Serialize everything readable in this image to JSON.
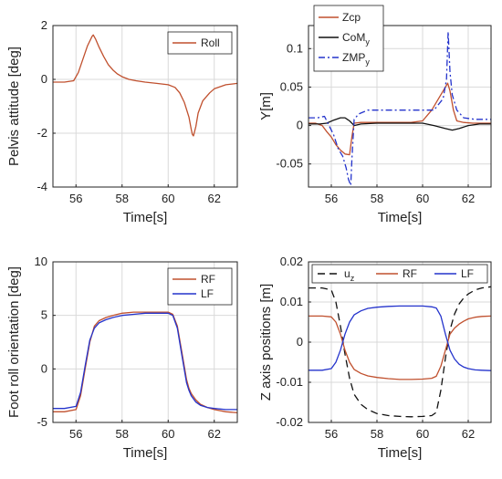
{
  "chart_data": [
    {
      "type": "line",
      "xlabel": "Time[s]",
      "ylabel": "Pelvis attitude [deg]",
      "xlim": [
        55,
        63
      ],
      "ylim": [
        -4,
        2
      ],
      "xticks": [
        56,
        58,
        60,
        62
      ],
      "yticks": [
        -4,
        -2,
        0,
        2
      ],
      "grid": true,
      "legend": "top-right",
      "series": [
        {
          "name": "Roll",
          "color": "#c0502e",
          "dash": "solid",
          "x": [
            55,
            55.5,
            55.9,
            56.1,
            56.3,
            56.5,
            56.7,
            56.75,
            56.85,
            57.0,
            57.2,
            57.4,
            57.6,
            57.8,
            58.0,
            58.3,
            58.6,
            59.0,
            59.5,
            60.0,
            60.3,
            60.5,
            60.7,
            60.9,
            61.0,
            61.05,
            61.1,
            61.2,
            61.3,
            61.5,
            61.8,
            62.0,
            62.5,
            63
          ],
          "y": [
            -0.1,
            -0.1,
            -0.05,
            0.25,
            0.75,
            1.25,
            1.6,
            1.65,
            1.5,
            1.2,
            0.85,
            0.55,
            0.35,
            0.2,
            0.1,
            0.0,
            -0.05,
            -0.1,
            -0.15,
            -0.2,
            -0.3,
            -0.5,
            -0.85,
            -1.4,
            -1.85,
            -2.05,
            -2.1,
            -1.75,
            -1.25,
            -0.8,
            -0.5,
            -0.35,
            -0.2,
            -0.15
          ]
        }
      ]
    },
    {
      "type": "line",
      "xlabel": "Time[s]",
      "ylabel": "Y[m]",
      "xlim": [
        55,
        63
      ],
      "ylim": [
        -0.08,
        0.13
      ],
      "xticks": [
        56,
        58,
        60,
        62
      ],
      "yticks": [
        -0.05,
        0,
        0.05,
        0.1
      ],
      "ytick_labels": [
        "-0.05",
        "0",
        "0.05",
        "0.1"
      ],
      "grid": true,
      "legend": "top-left",
      "series": [
        {
          "name": "Zcp",
          "color": "#c0502e",
          "dash": "solid",
          "x": [
            55,
            55.3,
            55.6,
            55.8,
            56.0,
            56.2,
            56.4,
            56.6,
            56.8,
            56.9,
            57.0,
            57.3,
            57.8,
            58.5,
            59.5,
            60.0,
            60.4,
            60.7,
            61.0,
            61.1,
            61.2,
            61.35,
            61.5,
            61.8,
            62.2,
            63
          ],
          "y": [
            0.003,
            0.003,
            0.0,
            -0.008,
            -0.015,
            -0.025,
            -0.032,
            -0.037,
            -0.038,
            -0.015,
            0.003,
            0.004,
            0.004,
            0.004,
            0.004,
            0.006,
            0.02,
            0.035,
            0.05,
            0.055,
            0.045,
            0.02,
            0.006,
            0.004,
            0.003,
            0.003
          ]
        },
        {
          "name": "CoM",
          "name_subscript": "y",
          "color": "#111111",
          "dash": "solid",
          "x": [
            55,
            55.5,
            55.8,
            56.1,
            56.4,
            56.6,
            56.8,
            57.0,
            57.3,
            58.0,
            59.0,
            60.0,
            60.5,
            61.0,
            61.3,
            61.6,
            62.0,
            62.5,
            63
          ],
          "y": [
            0.002,
            0.002,
            0.003,
            0.007,
            0.01,
            0.01,
            0.006,
            0.0,
            0.002,
            0.003,
            0.003,
            0.003,
            0.0,
            -0.004,
            -0.006,
            -0.004,
            0.0,
            0.002,
            0.002
          ]
        },
        {
          "name": "ZMP",
          "name_subscript": "y",
          "color": "#2433cc",
          "dash": "dashdot",
          "x": [
            55,
            55.4,
            55.7,
            55.9,
            56.1,
            56.3,
            56.5,
            56.65,
            56.75,
            56.85,
            56.9,
            57.0,
            57.2,
            57.6,
            58.0,
            59.0,
            60.0,
            60.5,
            60.9,
            61.05,
            61.12,
            61.2,
            61.3,
            61.5,
            61.8,
            62.3,
            63
          ],
          "y": [
            0.01,
            0.01,
            0.012,
            0.0,
            -0.012,
            -0.03,
            -0.04,
            -0.055,
            -0.07,
            -0.078,
            -0.045,
            0.008,
            0.015,
            0.02,
            0.02,
            0.02,
            0.02,
            0.02,
            0.035,
            0.06,
            0.122,
            0.07,
            0.04,
            0.02,
            0.01,
            0.008,
            0.008
          ]
        }
      ]
    },
    {
      "type": "line",
      "xlabel": "Time[s]",
      "ylabel": "Foot roll orientation [deg]",
      "xlim": [
        55,
        63
      ],
      "ylim": [
        -5,
        10
      ],
      "xticks": [
        56,
        58,
        60,
        62
      ],
      "yticks": [
        -5,
        0,
        5,
        10
      ],
      "grid": true,
      "legend": "top-right",
      "series": [
        {
          "name": "RF",
          "color": "#c0502e",
          "dash": "solid",
          "x": [
            55,
            55.5,
            56.0,
            56.2,
            56.4,
            56.6,
            56.8,
            57.0,
            57.3,
            57.6,
            58.0,
            58.5,
            59.0,
            59.5,
            60.0,
            60.2,
            60.4,
            60.6,
            60.8,
            60.9,
            61.0,
            61.2,
            61.4,
            61.7,
            62.0,
            62.5,
            63
          ],
          "y": [
            -4.0,
            -4.0,
            -3.8,
            -2.5,
            0.0,
            2.5,
            4.0,
            4.5,
            4.8,
            5.0,
            5.2,
            5.3,
            5.3,
            5.3,
            5.3,
            5.1,
            4.0,
            1.5,
            -1.0,
            -1.8,
            -2.3,
            -2.9,
            -3.3,
            -3.6,
            -3.8,
            -4.0,
            -4.1
          ]
        },
        {
          "name": "LF",
          "color": "#2433cc",
          "dash": "solid",
          "x": [
            55,
            55.5,
            56.0,
            56.2,
            56.4,
            56.6,
            56.8,
            57.0,
            57.3,
            57.6,
            58.0,
            58.5,
            59.0,
            59.5,
            60.0,
            60.2,
            60.4,
            60.6,
            60.8,
            60.9,
            61.0,
            61.2,
            61.4,
            61.7,
            62.0,
            62.5,
            63
          ],
          "y": [
            -3.7,
            -3.7,
            -3.5,
            -2.2,
            0.3,
            2.7,
            3.8,
            4.3,
            4.6,
            4.8,
            5.0,
            5.1,
            5.2,
            5.2,
            5.2,
            5.0,
            3.8,
            1.2,
            -1.3,
            -2.0,
            -2.5,
            -3.1,
            -3.4,
            -3.6,
            -3.7,
            -3.8,
            -3.8
          ]
        }
      ]
    },
    {
      "type": "line",
      "xlabel": "Time[s]",
      "ylabel": "Z axis positions [m]",
      "xlim": [
        55,
        63
      ],
      "ylim": [
        -0.02,
        0.02
      ],
      "xticks": [
        56,
        58,
        60,
        62
      ],
      "yticks": [
        -0.02,
        -0.01,
        0,
        0.01,
        0.02
      ],
      "ytick_labels": [
        "-0.02",
        "-0.01",
        "0",
        "0.01",
        "0.02"
      ],
      "grid": true,
      "legend": "top",
      "series": [
        {
          "name": "u",
          "name_subscript": "z",
          "color": "#111111",
          "dash": "dashed",
          "x": [
            55,
            55.6,
            56.0,
            56.2,
            56.4,
            56.6,
            56.8,
            57.0,
            57.3,
            57.6,
            58.0,
            58.5,
            59.0,
            59.5,
            60.0,
            60.4,
            60.6,
            60.8,
            61.0,
            61.2,
            61.4,
            61.6,
            61.8,
            62.0,
            62.3,
            62.6,
            63
          ],
          "y": [
            0.0135,
            0.0135,
            0.013,
            0.01,
            0.004,
            -0.003,
            -0.009,
            -0.013,
            -0.0155,
            -0.0168,
            -0.0178,
            -0.0183,
            -0.0185,
            -0.0186,
            -0.0185,
            -0.0183,
            -0.0175,
            -0.012,
            -0.004,
            0.003,
            0.007,
            0.0095,
            0.011,
            0.012,
            0.013,
            0.0135,
            0.0138
          ]
        },
        {
          "name": "RF",
          "color": "#c0502e",
          "dash": "solid",
          "x": [
            55,
            55.6,
            56.0,
            56.2,
            56.4,
            56.6,
            56.8,
            57.0,
            57.3,
            57.6,
            58.0,
            58.5,
            59.0,
            59.5,
            60.0,
            60.4,
            60.6,
            60.8,
            61.0,
            61.2,
            61.4,
            61.6,
            61.8,
            62.0,
            62.3,
            62.6,
            63
          ],
          "y": [
            0.0065,
            0.0065,
            0.0063,
            0.005,
            0.002,
            -0.002,
            -0.005,
            -0.0068,
            -0.0078,
            -0.0084,
            -0.0088,
            -0.0091,
            -0.0093,
            -0.0093,
            -0.0092,
            -0.009,
            -0.0085,
            -0.006,
            -0.002,
            0.002,
            0.0035,
            0.0045,
            0.0052,
            0.0058,
            0.0062,
            0.0064,
            0.0065
          ]
        },
        {
          "name": "LF",
          "color": "#2433cc",
          "dash": "solid",
          "x": [
            55,
            55.6,
            56.0,
            56.2,
            56.4,
            56.6,
            56.8,
            57.0,
            57.3,
            57.6,
            58.0,
            58.5,
            59.0,
            59.5,
            60.0,
            60.4,
            60.6,
            60.8,
            61.0,
            61.2,
            61.4,
            61.6,
            61.8,
            62.0,
            62.3,
            62.6,
            63
          ],
          "y": [
            -0.007,
            -0.007,
            -0.0066,
            -0.005,
            -0.002,
            0.002,
            0.005,
            0.0068,
            0.0078,
            0.0084,
            0.0087,
            0.0089,
            0.009,
            0.009,
            0.009,
            0.0088,
            0.0085,
            0.0065,
            0.002,
            -0.002,
            -0.0042,
            -0.0055,
            -0.0062,
            -0.0066,
            -0.0069,
            -0.007,
            -0.0071
          ]
        }
      ]
    }
  ]
}
